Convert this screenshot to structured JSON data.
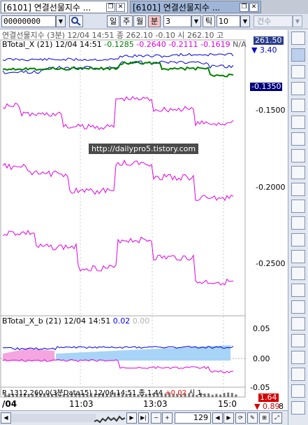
{
  "tabs": [
    {
      "title": "[6101] 연결선물지수 ...",
      "active": false
    },
    {
      "title": "[6101] 연결선물지수 ...",
      "active": true
    }
  ],
  "toolbar": {
    "code_value": "00000000",
    "timeframes": [
      "일",
      "주",
      "월",
      "분"
    ],
    "active_timeframe": "분",
    "minute_value": "3",
    "tick_label": "틱",
    "tick_value": "10",
    "count_label": "건수"
  },
  "price_pane": {
    "info_title": "연결선물지수 (3분) 12/04 14:51",
    "info_rest": "종 262.10 -0.10   시 262.10 고",
    "indicator_name": "BTotal_X",
    "indicator_info": "(21) 12/04 14:51",
    "indicator_values": [
      "-0.1285",
      "-0.2640",
      "-0.2111",
      "-0.1619"
    ],
    "indicator_tail": "N/A",
    "price_label": "261.50",
    "price_delta": "3.40",
    "current_value": "-0.1350",
    "y_ticks": [
      "-0.1500",
      "-0.2000",
      "-0.2500"
    ]
  },
  "watermark": "http://dailypro5.tistory.com",
  "osc_pane": {
    "indicator_name": "BTotal_X_b",
    "indicator_info": "(21) 12/04 14:51",
    "value_blue": "0.02",
    "value_grey": "0.00",
    "y_ticks": [
      "0.05",
      "0.00",
      "-0.05"
    ]
  },
  "volume_pane": {
    "info_prefix": "P_1312.260.0(3분Data15) 12/04 14:51",
    "info_close": "종 1.44",
    "info_change": "+0.02",
    "info_tail": "시 1.",
    "label_high": "1.64",
    "label_low": "0.89",
    "label_tail": "8"
  },
  "time_axis": {
    "labels": [
      "/04",
      "11:03",
      "13:03",
      "15:0"
    ]
  },
  "bottom": {
    "zoom_value": "129"
  },
  "chart_data": {
    "type": "line",
    "panes": [
      {
        "name": "BTotal_X",
        "series": [
          {
            "name": "BTotal_X",
            "color": "#008000",
            "last": -0.1285
          },
          {
            "name": "",
            "color": "#e000e0",
            "last": -0.264
          },
          {
            "name": "",
            "color": "#e000e0",
            "last": -0.2111
          },
          {
            "name": "",
            "color": "#e000e0",
            "last": -0.1619
          }
        ],
        "y_ticks": [
          -0.15,
          -0.2,
          -0.25
        ],
        "current": -0.135
      },
      {
        "name": "BTotal_X_b",
        "y_ticks": [
          0.05,
          0.0,
          -0.05
        ],
        "current": 0.02
      }
    ],
    "x_labels": [
      "/04",
      "11:03",
      "13:03",
      "15:0"
    ]
  }
}
